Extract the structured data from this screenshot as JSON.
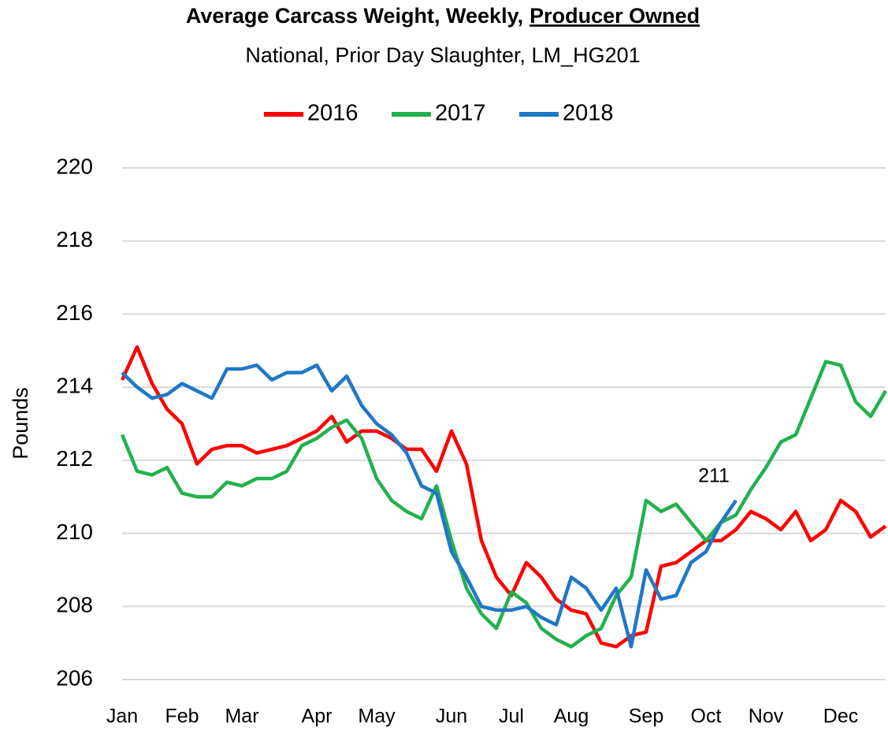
{
  "chart_data": {
    "type": "line",
    "title": "Average Carcass Weight, Weekly,",
    "title_emphasis": "Producer Owned",
    "subtitle": "National, Prior Day Slaughter, LM_HG201",
    "y_label": "Pounds",
    "annotation": "211",
    "categories": [
      "Jan",
      null,
      null,
      null,
      "Feb",
      null,
      null,
      null,
      "Mar",
      null,
      null,
      null,
      null,
      "Apr",
      null,
      null,
      null,
      "May",
      null,
      null,
      null,
      null,
      "Jun",
      null,
      null,
      null,
      "Jul",
      null,
      null,
      null,
      "Aug",
      null,
      null,
      null,
      null,
      "Sep",
      null,
      null,
      null,
      "Oct",
      null,
      null,
      null,
      "Nov",
      null,
      null,
      null,
      null,
      "Dec",
      null,
      null,
      null
    ],
    "series": [
      {
        "name": "2016",
        "color": "#ff0000",
        "values": [
          214.2,
          215.1,
          214.1,
          213.4,
          213.0,
          211.9,
          212.3,
          212.4,
          212.4,
          212.2,
          212.3,
          212.4,
          212.6,
          212.8,
          213.2,
          212.5,
          212.8,
          212.8,
          212.6,
          212.3,
          212.3,
          211.7,
          212.8,
          211.9,
          209.8,
          208.8,
          208.3,
          209.2,
          208.8,
          208.2,
          207.9,
          207.8,
          207.0,
          206.9,
          207.2,
          207.3,
          209.1,
          209.2,
          209.5,
          209.8,
          209.8,
          210.1,
          210.6,
          210.4,
          210.1,
          210.6,
          209.8,
          210.1,
          210.9,
          210.6,
          209.9,
          210.2
        ]
      },
      {
        "name": "2017",
        "color": "#22b14c",
        "values": [
          212.7,
          211.7,
          211.6,
          211.8,
          211.1,
          211.0,
          211.0,
          211.4,
          211.3,
          211.5,
          211.5,
          211.7,
          212.4,
          212.6,
          212.9,
          213.1,
          212.6,
          211.5,
          210.9,
          210.6,
          210.4,
          211.3,
          209.8,
          208.5,
          207.8,
          207.4,
          208.4,
          208.1,
          207.4,
          207.1,
          206.9,
          207.2,
          207.4,
          208.3,
          208.8,
          210.9,
          210.6,
          210.8,
          210.3,
          209.8,
          210.3,
          210.5,
          211.2,
          211.8,
          212.5,
          212.7,
          213.7,
          214.7,
          214.6,
          213.6,
          213.2,
          213.9
        ]
      },
      {
        "name": "2018",
        "color": "#1f77c8",
        "values": [
          214.4,
          214.0,
          213.7,
          213.8,
          214.1,
          213.9,
          213.7,
          214.5,
          214.5,
          214.6,
          214.2,
          214.4,
          214.4,
          214.6,
          213.9,
          214.3,
          213.5,
          213.0,
          212.7,
          212.2,
          211.3,
          211.1,
          209.5,
          208.8,
          208.0,
          207.9,
          207.9,
          208.0,
          207.7,
          207.5,
          208.8,
          208.5,
          207.9,
          208.5,
          206.9,
          209.0,
          208.2,
          208.3,
          209.2,
          209.5,
          210.3,
          210.9,
          null,
          null,
          null,
          null,
          null,
          null,
          null,
          null,
          null,
          null
        ]
      }
    ],
    "ylim": [
      206,
      220
    ],
    "yticks": [
      206,
      208,
      210,
      212,
      214,
      216,
      218,
      220
    ],
    "grid": true
  }
}
